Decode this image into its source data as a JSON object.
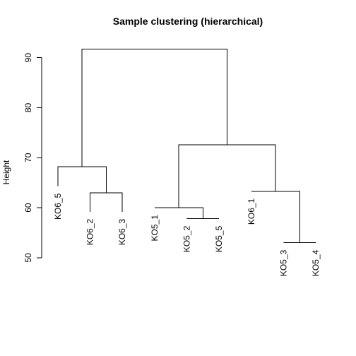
{
  "chart_data": {
    "type": "dendrogram",
    "title": "Sample clustering (hierarchical)",
    "xlabel": "",
    "ylabel": "Height",
    "ylim": [
      48.3,
      93.2
    ],
    "yticks": [
      50,
      60,
      70,
      80,
      90
    ],
    "leaves": [
      "KO6_5",
      "KO6_2",
      "KO6_3",
      "KO5_1",
      "KO5_2",
      "KO5_5",
      "KO6_1",
      "KO5_3",
      "KO5_4"
    ],
    "leaf_heights": [
      64.3,
      59.2,
      59.2,
      60.0,
      57.8,
      57.8,
      63.3,
      53.0,
      53.0
    ],
    "merges": [
      {
        "left": 7,
        "right": 8,
        "height": 53.0
      },
      {
        "left": 4,
        "right": 5,
        "height": 57.8
      },
      {
        "left": 3,
        "right": "m1",
        "height": 60.0
      },
      {
        "left": 1,
        "right": 2,
        "height": 63.0
      },
      {
        "left": 6,
        "right": "m0",
        "height": 63.3
      },
      {
        "left": 0,
        "right": "m3",
        "height": 68.2
      },
      {
        "left": "m2",
        "right": "m4",
        "height": 72.6
      },
      {
        "left": "m5",
        "right": "m6",
        "height": 91.7
      }
    ]
  }
}
